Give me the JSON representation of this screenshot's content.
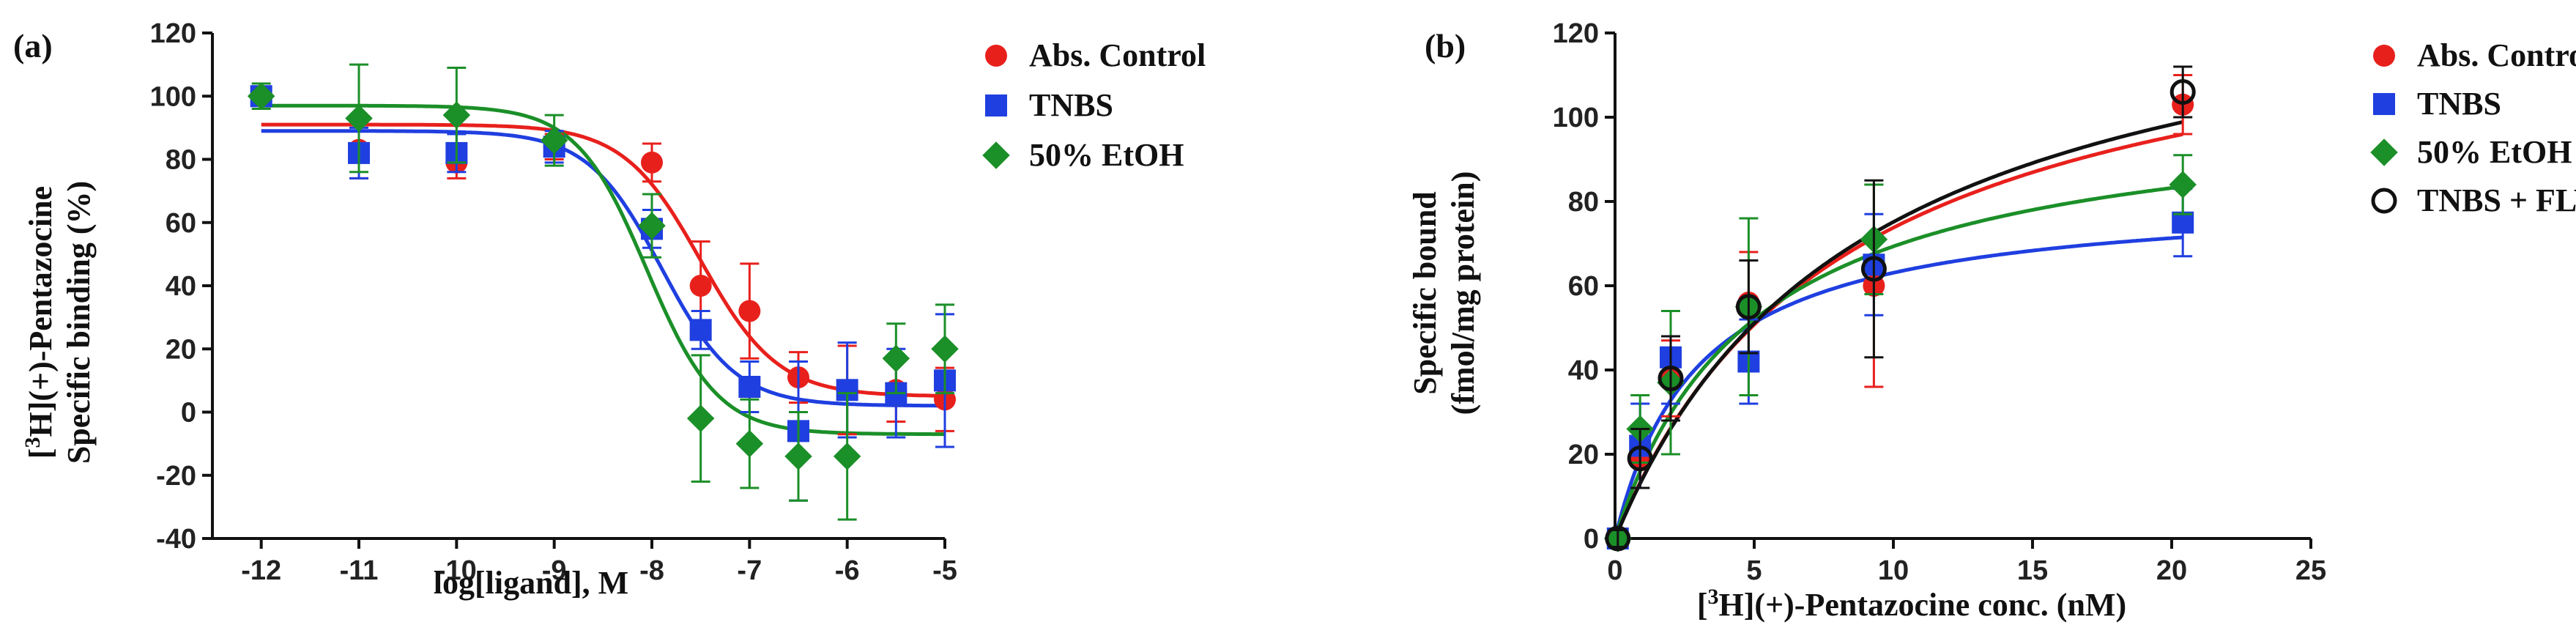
{
  "colors": {
    "red": "#e8201c",
    "blue": "#1f3fe0",
    "green": "#1b8f28",
    "black": "#111111"
  },
  "chart_data": [
    {
      "panel_label": "(a)",
      "type": "scatter",
      "xlabel": "log[ligand], M",
      "ylabel_line1": "[3H](+)-Pentazocine",
      "ylabel_line2": "Specific binding (%)",
      "xlim": [
        -12.5,
        -5
      ],
      "ylim": [
        -40,
        120
      ],
      "x_ticks": [
        -12,
        -11,
        -10,
        -9,
        -8,
        -7,
        -6,
        -5
      ],
      "y_ticks": [
        -40,
        -20,
        0,
        20,
        40,
        60,
        80,
        100,
        120
      ],
      "legend_position": "top-right",
      "series": [
        {
          "name": "Abs. Control",
          "color": "red",
          "marker": "circle",
          "x": [
            -12,
            -11,
            -10,
            -9,
            -8,
            -7.5,
            -7,
            -6.5,
            -6,
            -5.5,
            -5
          ],
          "y": [
            100,
            83,
            79,
            84,
            79,
            40,
            32,
            11,
            7,
            7,
            4
          ],
          "err": [
            3,
            9,
            5,
            4,
            6,
            14,
            15,
            8,
            14,
            10,
            10
          ],
          "fit": {
            "top": 91,
            "bottom": 5,
            "logec50": -7.5,
            "hill": 1.1
          }
        },
        {
          "name": "TNBS",
          "color": "blue",
          "marker": "square",
          "x": [
            -12,
            -11,
            -10,
            -9,
            -8,
            -7.5,
            -7,
            -6.5,
            -6,
            -5.5,
            -5
          ],
          "y": [
            100,
            82,
            82,
            84,
            58,
            26,
            8,
            -6,
            7,
            6,
            10
          ],
          "err": [
            2,
            8,
            6,
            5,
            6,
            6,
            8,
            22,
            15,
            14,
            21
          ],
          "fit": {
            "top": 89,
            "bottom": 2,
            "logec50": -7.9,
            "hill": 1.15
          }
        },
        {
          "name": "50% EtOH",
          "color": "green",
          "marker": "diamond",
          "x": [
            -12,
            -11,
            -10,
            -9,
            -8,
            -7.5,
            -7,
            -6.5,
            -6,
            -5.5,
            -5
          ],
          "y": [
            100,
            93,
            94,
            86,
            59,
            -2,
            -10,
            -14,
            -14,
            17,
            20
          ],
          "err": [
            4,
            17,
            15,
            8,
            10,
            20,
            14,
            14,
            20,
            11,
            14
          ],
          "fit": {
            "top": 97,
            "bottom": -7,
            "logec50": -8.05,
            "hill": 1.2
          }
        }
      ]
    },
    {
      "panel_label": "(b)",
      "type": "scatter",
      "xlabel": "[3H](+)-Pentazocine conc. (nM)",
      "ylabel_line1": "Specific bound",
      "ylabel_line2": "(fmol/mg protein)",
      "xlim": [
        0,
        25
      ],
      "ylim": [
        0,
        120
      ],
      "x_ticks": [
        0,
        5,
        10,
        15,
        20,
        25
      ],
      "y_ticks": [
        0,
        20,
        40,
        60,
        80,
        100,
        120
      ],
      "legend_position": "top-right",
      "series": [
        {
          "name": "Abs. Control",
          "color": "red",
          "marker": "circle",
          "x": [
            0.1,
            0.9,
            2.0,
            4.8,
            9.3,
            20.4
          ],
          "y": [
            0,
            19,
            38,
            56,
            60,
            103
          ],
          "err": [
            2,
            7,
            9,
            12,
            24,
            7
          ],
          "fit": {
            "bmax": 135,
            "kd": 8.3
          }
        },
        {
          "name": "TNBS",
          "color": "blue",
          "marker": "square",
          "x": [
            0.1,
            0.9,
            2.0,
            4.8,
            9.3,
            20.4
          ],
          "y": [
            0,
            22,
            43,
            42,
            65,
            75
          ],
          "err": [
            2,
            10,
            11,
            10,
            12,
            8
          ],
          "fit": {
            "bmax": 82,
            "kd": 3.0
          }
        },
        {
          "name": "50% EtOH",
          "color": "green",
          "marker": "diamond",
          "x": [
            0.1,
            0.9,
            2.0,
            4.8,
            9.3,
            20.4
          ],
          "y": [
            0,
            26,
            37,
            55,
            71,
            84
          ],
          "err": [
            2,
            8,
            17,
            21,
            13,
            7
          ],
          "fit": {
            "bmax": 104,
            "kd": 5.0
          }
        },
        {
          "name": "TNBS + FLV",
          "color": "black",
          "marker": "open-circle",
          "x": [
            0.1,
            0.9,
            2.0,
            4.8,
            9.3,
            20.4
          ],
          "y": [
            0,
            19,
            38,
            55,
            64,
            106
          ],
          "err": [
            2,
            7,
            10,
            11,
            21,
            6
          ],
          "fit": {
            "bmax": 142,
            "kd": 8.9
          }
        }
      ]
    }
  ]
}
